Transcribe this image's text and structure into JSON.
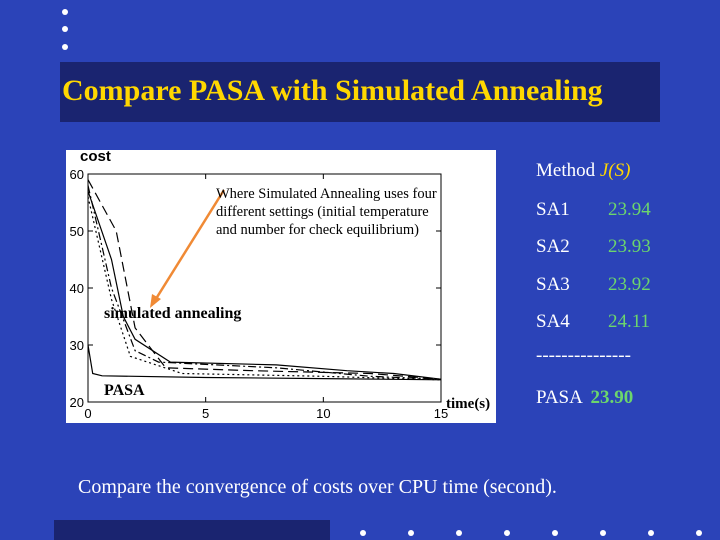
{
  "slide": {
    "title": "Compare PASA with Simulated Annealing",
    "caption": "Compare the convergence of costs over CPU time (second).",
    "colors": {
      "background": "#2b43b8",
      "title_bar": "#1a2470",
      "title_text": "#ffd700",
      "highlight": "#6cd66c"
    }
  },
  "chart_callout": "Where Simulated Annealing uses four different settings (initial temperature and number for check equilibrium)",
  "chart_labels": {
    "simulated_annealing": "simulated annealing",
    "pasa": "PASA"
  },
  "chart_data": {
    "type": "line",
    "ylabel": "cost",
    "xlabel": "time(s)",
    "xlim": [
      0,
      15
    ],
    "ylim": [
      20,
      60
    ],
    "x_ticks": [
      "0",
      "5",
      "10",
      "15"
    ],
    "y_ticks": [
      "20",
      "30",
      "40",
      "50",
      "60"
    ],
    "series": [
      {
        "style": "solid",
        "points": [
          [
            0,
            57
          ],
          [
            1,
            45
          ],
          [
            1.5,
            35
          ],
          [
            2,
            31
          ],
          [
            3.5,
            27
          ],
          [
            8,
            26.5
          ],
          [
            11,
            25.5
          ],
          [
            13,
            25
          ],
          [
            15,
            24
          ]
        ]
      },
      {
        "style": "dashed",
        "points": [
          [
            0,
            59
          ],
          [
            1.2,
            50
          ],
          [
            2,
            33
          ],
          [
            3.3,
            26
          ],
          [
            7,
            25.5
          ],
          [
            12,
            25
          ],
          [
            15,
            24
          ]
        ]
      },
      {
        "style": "dashdot",
        "points": [
          [
            0,
            58
          ],
          [
            1,
            40
          ],
          [
            2,
            29
          ],
          [
            3,
            27
          ],
          [
            8,
            26
          ],
          [
            12,
            24.5
          ],
          [
            15,
            24
          ]
        ]
      },
      {
        "style": "dotted",
        "points": [
          [
            0,
            56
          ],
          [
            1,
            38
          ],
          [
            1.8,
            28
          ],
          [
            4,
            25
          ],
          [
            10,
            24.5
          ],
          [
            15,
            23.9
          ]
        ]
      },
      {
        "name": "PASA",
        "style": "solid",
        "points": [
          [
            0,
            30
          ],
          [
            0.2,
            25
          ],
          [
            0.6,
            24.6
          ],
          [
            5,
            24.3
          ],
          [
            10,
            24.1
          ],
          [
            15,
            23.9
          ]
        ]
      }
    ]
  },
  "results_table": {
    "header_method": "Method",
    "header_metric": "J(S)",
    "rows": [
      {
        "method": "SA1",
        "value": "23.94"
      },
      {
        "method": "SA2",
        "value": "23.93"
      },
      {
        "method": "SA3",
        "value": "23.92"
      },
      {
        "method": "SA4",
        "value": "24.11"
      }
    ],
    "separator": "---------------",
    "pasa_row": {
      "method": "PASA",
      "value": "23.90"
    }
  }
}
